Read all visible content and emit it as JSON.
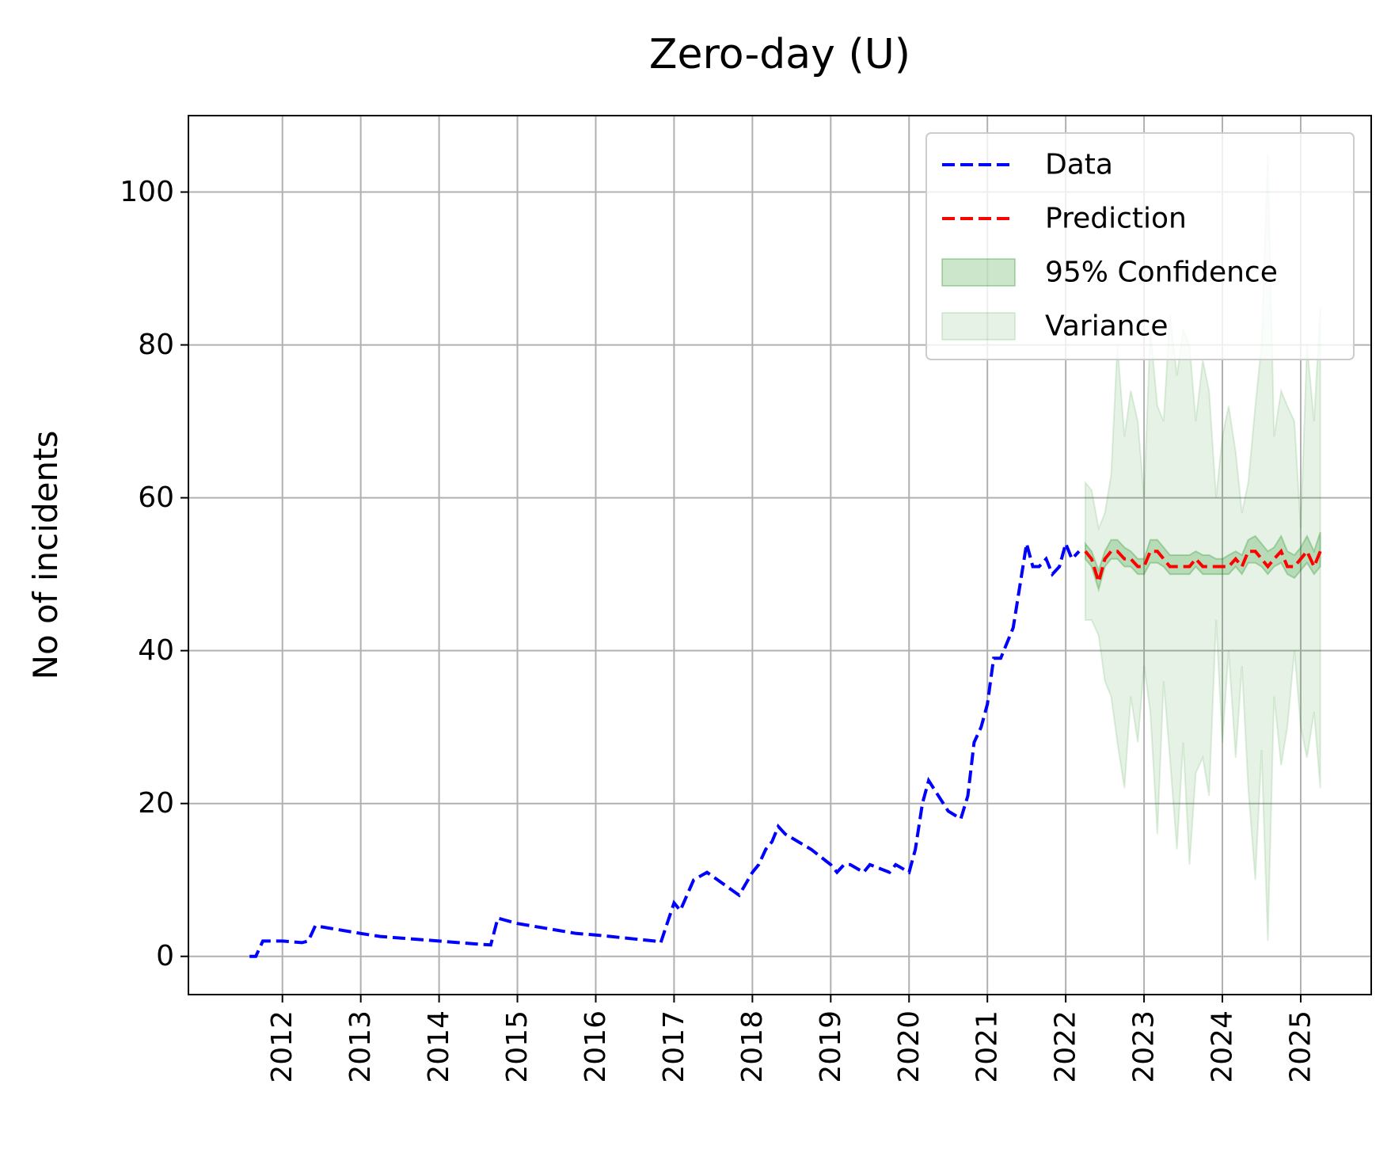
{
  "chart_data": {
    "type": "line",
    "title": "Zero-day (U)",
    "xlabel": "",
    "ylabel": "No of incidents",
    "xlim": [
      2010.8,
      2025.9
    ],
    "ylim": [
      -5,
      110
    ],
    "x_ticks": [
      2012,
      2013,
      2014,
      2015,
      2016,
      2017,
      2018,
      2019,
      2020,
      2021,
      2022,
      2023,
      2024,
      2025
    ],
    "y_ticks": [
      0,
      20,
      40,
      60,
      80,
      100
    ],
    "grid": true,
    "legend_position": "top-right",
    "legend": [
      "Data",
      "Prediction",
      "95% Confidence",
      "Variance"
    ],
    "colors": {
      "data": "#0000ff",
      "prediction": "#ff0000",
      "confidence": "#008000",
      "variance": "#008000"
    },
    "series": [
      {
        "name": "Data",
        "style": "dashed",
        "x": [
          2011.58,
          2011.66,
          2011.75,
          2012.0,
          2012.25,
          2012.33,
          2012.42,
          2013.0,
          2013.25,
          2014.0,
          2014.5,
          2014.66,
          2014.75,
          2015.0,
          2015.75,
          2016.0,
          2016.75,
          2016.83,
          2017.0,
          2017.08,
          2017.25,
          2017.42,
          2017.83,
          2018.0,
          2018.08,
          2018.17,
          2018.25,
          2018.33,
          2018.42,
          2018.75,
          2019.0,
          2019.08,
          2019.17,
          2019.25,
          2019.42,
          2019.5,
          2019.75,
          2019.83,
          2020.0,
          2020.08,
          2020.17,
          2020.25,
          2020.5,
          2020.66,
          2020.75,
          2020.83,
          2020.92,
          2021.0,
          2021.08,
          2021.17,
          2021.33,
          2021.5,
          2021.58,
          2021.66,
          2021.75,
          2021.83,
          2021.92,
          2022.0,
          2022.08,
          2022.17
        ],
        "values": [
          0,
          0,
          2,
          2,
          1.8,
          2,
          4,
          3,
          2.6,
          2,
          1.6,
          1.5,
          5,
          4.3,
          3,
          2.8,
          2,
          1.8,
          7,
          6,
          10,
          11,
          8,
          11,
          12,
          14,
          15,
          17,
          16,
          14,
          12,
          11,
          12,
          12,
          11,
          12,
          11,
          12,
          11,
          14,
          20,
          23,
          19,
          18,
          21,
          28,
          30,
          33,
          39,
          39,
          43,
          54,
          51,
          51,
          52,
          50,
          51,
          54,
          52,
          53
        ]
      },
      {
        "name": "Prediction",
        "style": "dashed",
        "x": [
          2022.25,
          2022.33,
          2022.42,
          2022.5,
          2022.58,
          2022.66,
          2022.75,
          2022.83,
          2022.92,
          2023.0,
          2023.08,
          2023.17,
          2023.25,
          2023.33,
          2023.42,
          2023.5,
          2023.58,
          2023.66,
          2023.75,
          2023.83,
          2023.92,
          2024.0,
          2024.08,
          2024.17,
          2024.25,
          2024.33,
          2024.42,
          2024.5,
          2024.58,
          2024.66,
          2024.75,
          2024.83,
          2024.92,
          2025.0,
          2025.08,
          2025.17,
          2025.25
        ],
        "values": [
          53,
          52,
          49,
          52,
          53,
          53,
          52,
          52,
          51,
          51,
          53,
          53,
          52,
          51,
          51,
          51,
          51,
          52,
          51,
          51,
          51,
          51,
          51,
          52,
          51,
          53,
          53,
          52,
          51,
          52,
          53,
          51,
          51,
          52,
          53,
          51,
          53
        ]
      },
      {
        "name": "95% Confidence",
        "type": "band",
        "x": [
          2022.25,
          2022.33,
          2022.42,
          2022.5,
          2022.58,
          2022.66,
          2022.75,
          2022.83,
          2022.92,
          2023.0,
          2023.08,
          2023.17,
          2023.25,
          2023.33,
          2023.42,
          2023.5,
          2023.58,
          2023.66,
          2023.75,
          2023.83,
          2023.92,
          2024.0,
          2024.08,
          2024.17,
          2024.25,
          2024.33,
          2024.42,
          2024.5,
          2024.58,
          2024.66,
          2024.75,
          2024.83,
          2024.92,
          2025.0,
          2025.08,
          2025.17,
          2025.25
        ],
        "lower": [
          52,
          51,
          48,
          51,
          52,
          52,
          51,
          51,
          50,
          50,
          51.5,
          51.5,
          51,
          50,
          50,
          50,
          50,
          51,
          50,
          50,
          50,
          50,
          50,
          51,
          50,
          51.5,
          51.5,
          51,
          50,
          51,
          51.5,
          50,
          49.5,
          50.5,
          51.5,
          50,
          51
        ],
        "upper": [
          54,
          53,
          50.5,
          53,
          54.5,
          54.5,
          53.5,
          53,
          52,
          52,
          54.5,
          54.5,
          53.5,
          52.5,
          52.5,
          52.5,
          52.5,
          53,
          52.5,
          52.5,
          52,
          52,
          52.5,
          53,
          52.5,
          54.5,
          55,
          54,
          53,
          53.5,
          55,
          53,
          52.5,
          53.5,
          55,
          53,
          55.5
        ]
      },
      {
        "name": "Variance",
        "type": "band",
        "x": [
          2022.25,
          2022.33,
          2022.42,
          2022.5,
          2022.58,
          2022.66,
          2022.75,
          2022.83,
          2022.92,
          2023.0,
          2023.08,
          2023.17,
          2023.25,
          2023.33,
          2023.42,
          2023.5,
          2023.58,
          2023.66,
          2023.75,
          2023.83,
          2023.92,
          2024.0,
          2024.08,
          2024.17,
          2024.25,
          2024.33,
          2024.42,
          2024.5,
          2024.58,
          2024.66,
          2024.75,
          2024.83,
          2024.92,
          2025.0,
          2025.08,
          2025.17,
          2025.25
        ],
        "lower": [
          44,
          44,
          42,
          36,
          34,
          28,
          22,
          34,
          28,
          38,
          32,
          16,
          36,
          26,
          14,
          28,
          12,
          24,
          26,
          21,
          44,
          28,
          40,
          26,
          38,
          22,
          10,
          27,
          2,
          34,
          25,
          30,
          40,
          30,
          26,
          32,
          22
        ],
        "upper": [
          62,
          61,
          56,
          58,
          63,
          80,
          68,
          74,
          70,
          60,
          82,
          72,
          70,
          84,
          76,
          82,
          80,
          70,
          78,
          74,
          60,
          68,
          72,
          66,
          58,
          62,
          72,
          80,
          105,
          68,
          74,
          72,
          70,
          56,
          80,
          70,
          85
        ]
      }
    ]
  }
}
